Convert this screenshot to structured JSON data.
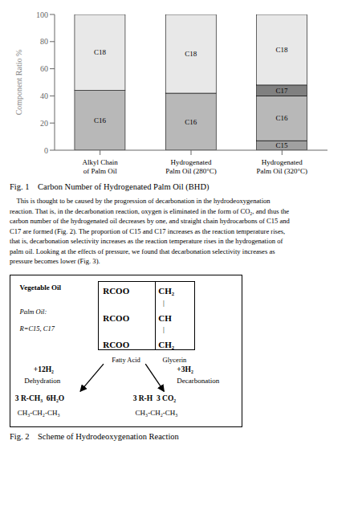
{
  "chart_data": {
    "type": "bar",
    "title": "Fig. 1    Carbon Number of Hydrogenated Palm Oil (BHD)",
    "ylabel": "Component Ratio  %",
    "categories": [
      "Alkyl Chain\nof Palm Oil",
      "Hydrogenated\nPalm Oil (280°C)",
      "Hydrogenated\nPalm Oil (320°C)"
    ],
    "stacked": true,
    "series": [
      {
        "name": "C15",
        "color": "#a0a0a0",
        "values": [
          0,
          0,
          7
        ]
      },
      {
        "name": "C16",
        "color": "#b8b8b8",
        "values": [
          44,
          42,
          33
        ]
      },
      {
        "name": "C17",
        "color": "#808080",
        "values": [
          0,
          0,
          8
        ]
      },
      {
        "name": "C18",
        "color": "#e8e8e8",
        "values": [
          56,
          58,
          52
        ]
      }
    ],
    "ylim": [
      0,
      100
    ],
    "yticks": [
      0,
      20,
      40,
      60,
      80,
      100
    ],
    "grid": false,
    "annotations": [
      "    This is thought to be caused by the progression of decarbonation in the hydrodeoxygenation",
      "reaction. That is, in the decarbonation reaction, oxygen is eliminated in the form of CO₂, and thus the",
      "carbon number of the hydrogenated oil decreases by one, and straight chain hydrocarbons of C15 and",
      "C17 are formed (Fig. 2). The proportion of C15 and C17 increases as the reaction temperature rises,",
      "that is, decarbonation selectivity increases as the reaction temperature rises in the hydrogenation of",
      "palm oil. Looking at the effects of pressure, we found that decarbonation selectivity increases as",
      "pressure becomes lower (Fig. 3).",
      "Vegetable Oil",
      "Palm Oil:",
      "R=C15, C17",
      "RCOO",
      "CH₂",
      "|",
      "RCOO",
      "CH",
      "|",
      "RCOO",
      "CH₂",
      "Fatty Acid",
      "Glycerin",
      "+12H₂",
      "Dehydration",
      "+3H₂",
      "Decarbonation",
      "3 R-CH₃  6H₂O",
      "CH₃-CH₂-CH₃",
      "3 R-H  3 CO₂",
      "CH₃-CH₂-CH₃",
      "Fig. 2    Scheme of Hydrodeoxygenation Reaction"
    ]
  }
}
